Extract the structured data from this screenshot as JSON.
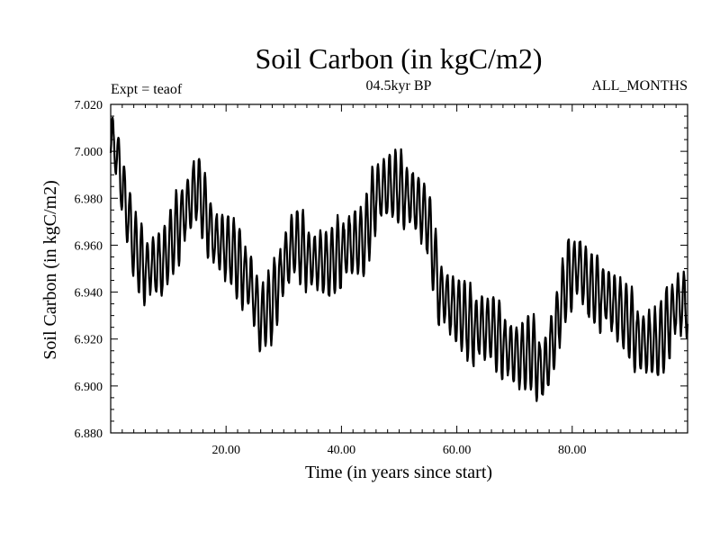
{
  "chart_data": {
    "type": "line",
    "title": "Soil Carbon (in kgC/m2)",
    "subtitle_left": "Expt = teaof",
    "subtitle_center": "04.5kyr BP",
    "subtitle_right": "ALL_MONTHS",
    "xlabel": "Time (in years since start)",
    "ylabel": "Soil Carbon (in kgC/m2)",
    "xlim": [
      0,
      100
    ],
    "ylim": [
      6.88,
      7.02
    ],
    "x_ticks": [
      20,
      40,
      60,
      80
    ],
    "x_tick_labels": [
      "20.00",
      "40.00",
      "60.00",
      "80.00"
    ],
    "y_ticks": [
      6.88,
      6.9,
      6.92,
      6.94,
      6.96,
      6.98,
      7.0,
      7.02
    ],
    "y_tick_labels": [
      "6.880",
      "6.900",
      "6.920",
      "6.940",
      "6.960",
      "6.980",
      "7.000",
      "7.020"
    ],
    "series_description": "monthly values, seasonal cycle (annual amplitude) superimposed on a slowly varying trend",
    "trend": {
      "x": [
        0,
        1,
        2,
        4,
        6,
        9,
        12,
        15,
        18,
        21,
        24,
        26,
        28,
        30,
        32,
        35,
        38,
        41,
        44,
        46,
        48,
        50,
        53,
        55,
        57,
        60,
        63,
        66,
        69,
        71,
        73,
        75,
        77,
        79,
        81,
        83,
        86,
        89,
        92,
        95,
        98,
        100
      ],
      "y": [
        7.005,
        7.0,
        6.985,
        6.96,
        6.95,
        6.952,
        6.97,
        6.985,
        6.962,
        6.957,
        6.945,
        6.928,
        6.935,
        6.952,
        6.962,
        6.953,
        6.952,
        6.96,
        6.962,
        6.982,
        6.985,
        6.984,
        6.978,
        6.97,
        6.94,
        6.932,
        6.925,
        6.925,
        6.915,
        6.912,
        6.915,
        6.905,
        6.922,
        6.945,
        6.952,
        6.942,
        6.938,
        6.93,
        6.918,
        6.918,
        6.935,
        6.935
      ]
    },
    "seasonal_amplitude": 0.014,
    "samples_per_year": 12
  }
}
